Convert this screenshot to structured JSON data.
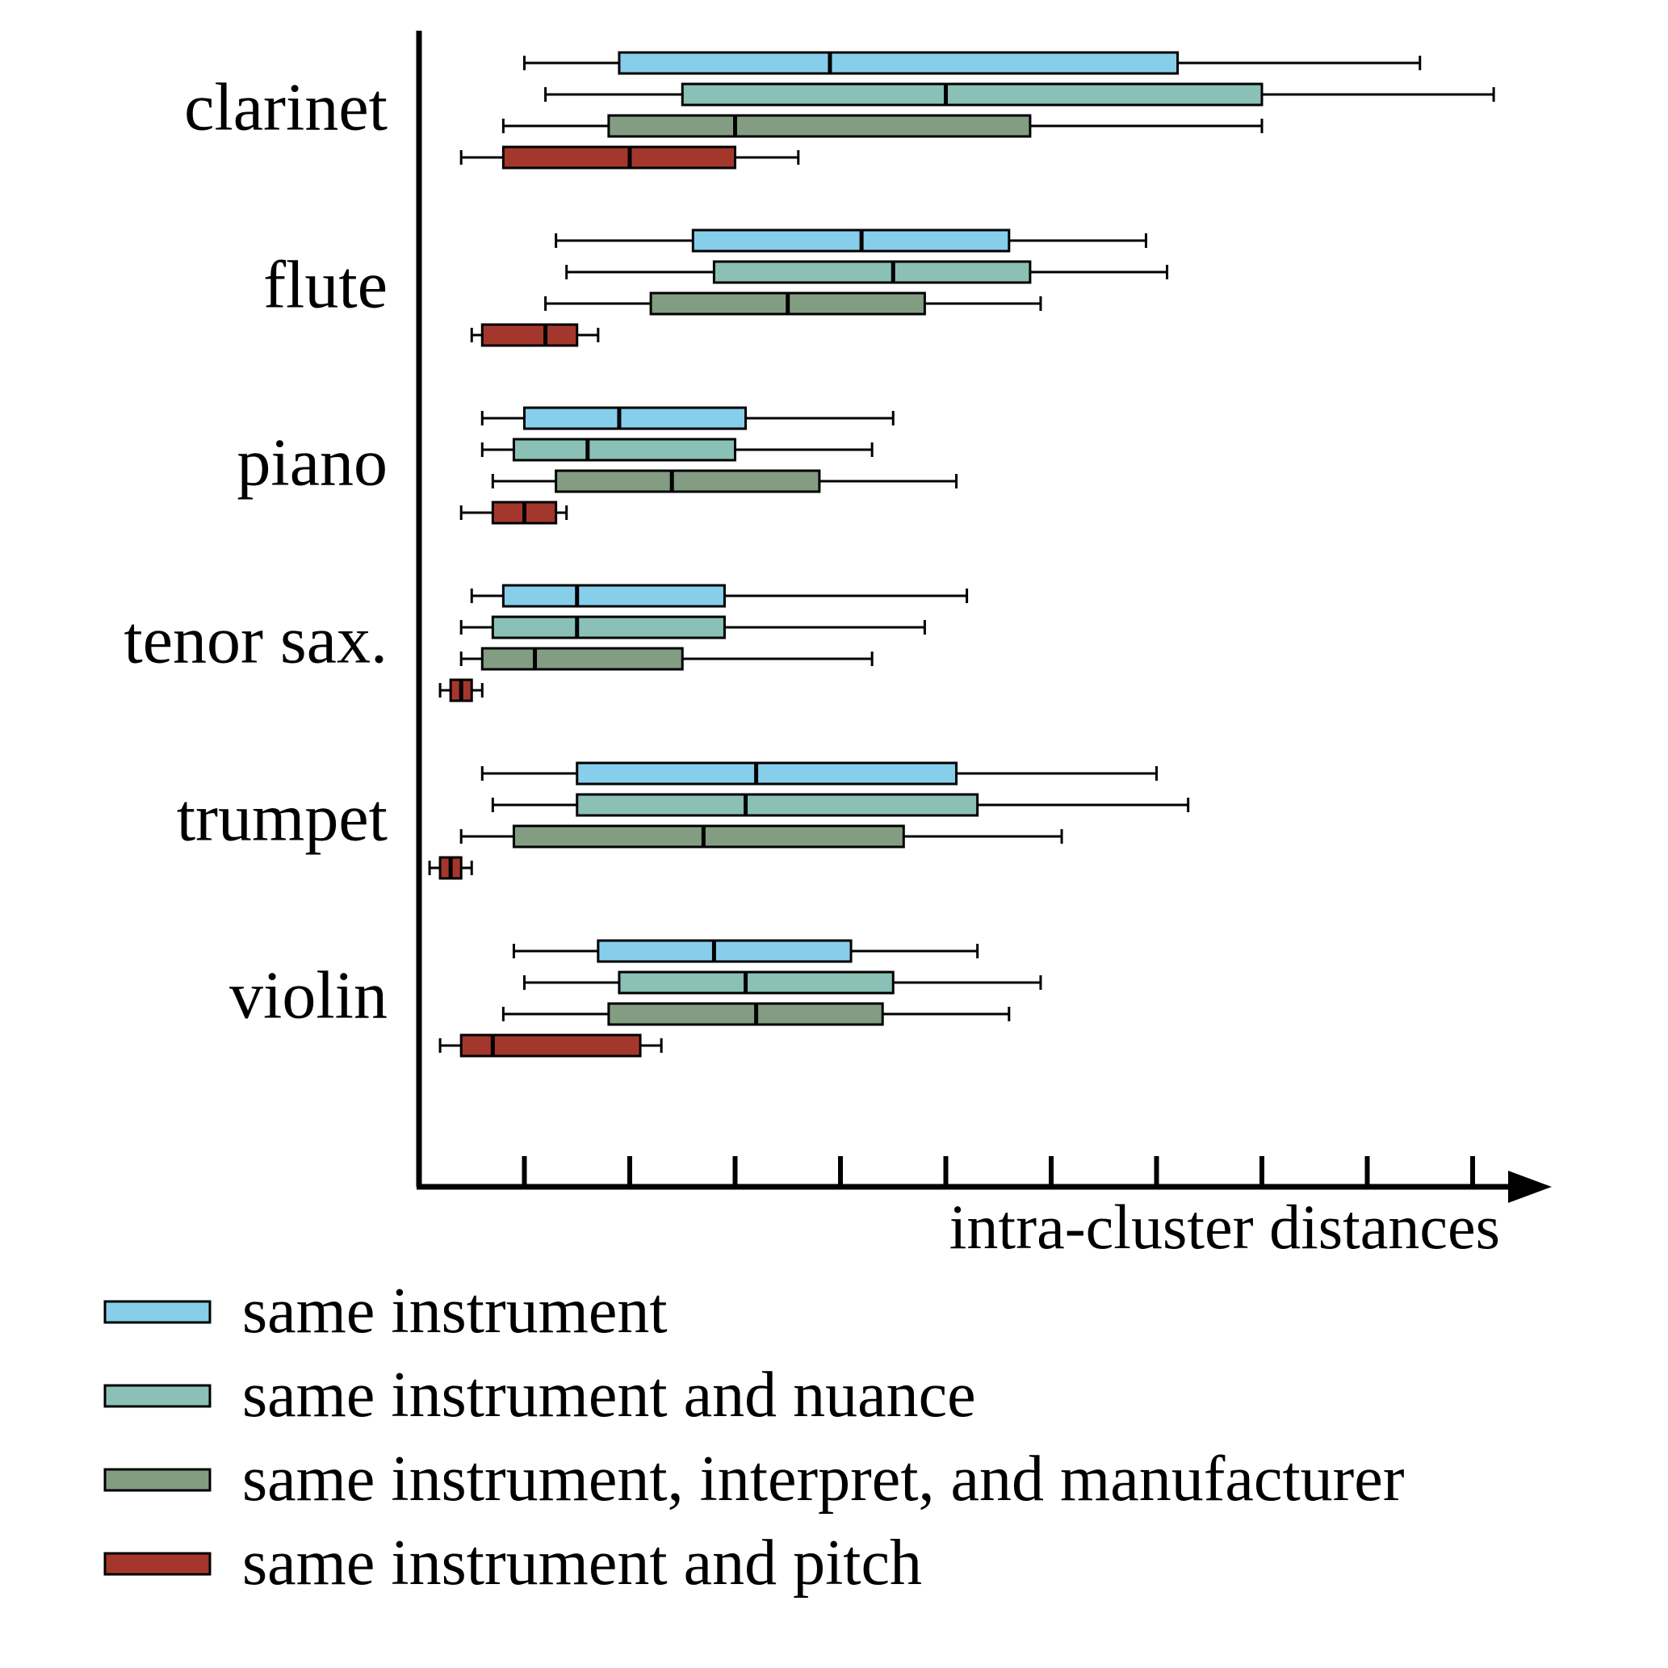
{
  "chart_data": {
    "type": "boxplot",
    "orientation": "horizontal",
    "xlabel": "intra-cluster distances",
    "ylabel": "",
    "x_ticks": [
      1,
      2,
      3,
      4,
      5,
      6,
      7,
      8,
      9,
      10
    ],
    "x_tick_labels_shown": false,
    "xlim": [
      0,
      10.6
    ],
    "grid": false,
    "legend_position": "bottom-left",
    "categories": [
      "clarinet",
      "flute",
      "piano",
      "tenor sax.",
      "trumpet",
      "violin"
    ],
    "series": [
      {
        "name": "same instrument",
        "color": "#87ceeb",
        "boxes": [
          {
            "whisker_low": 1.0,
            "q1": 1.9,
            "median": 3.9,
            "q3": 7.2,
            "whisker_high": 9.5
          },
          {
            "whisker_low": 1.3,
            "q1": 2.6,
            "median": 4.2,
            "q3": 5.6,
            "whisker_high": 6.9
          },
          {
            "whisker_low": 0.6,
            "q1": 1.0,
            "median": 1.9,
            "q3": 3.1,
            "whisker_high": 4.5
          },
          {
            "whisker_low": 0.5,
            "q1": 0.8,
            "median": 1.5,
            "q3": 2.9,
            "whisker_high": 5.2
          },
          {
            "whisker_low": 0.6,
            "q1": 1.5,
            "median": 3.2,
            "q3": 5.1,
            "whisker_high": 7.0
          },
          {
            "whisker_low": 0.9,
            "q1": 1.7,
            "median": 2.8,
            "q3": 4.1,
            "whisker_high": 5.3
          }
        ]
      },
      {
        "name": "same instrument and nuance",
        "color": "#8ac0b6",
        "boxes": [
          {
            "whisker_low": 1.2,
            "q1": 2.5,
            "median": 5.0,
            "q3": 8.0,
            "whisker_high": 10.2
          },
          {
            "whisker_low": 1.4,
            "q1": 2.8,
            "median": 4.5,
            "q3": 5.8,
            "whisker_high": 7.1
          },
          {
            "whisker_low": 0.6,
            "q1": 0.9,
            "median": 1.6,
            "q3": 3.0,
            "whisker_high": 4.3
          },
          {
            "whisker_low": 0.4,
            "q1": 0.7,
            "median": 1.5,
            "q3": 2.9,
            "whisker_high": 4.8
          },
          {
            "whisker_low": 0.7,
            "q1": 1.5,
            "median": 3.1,
            "q3": 5.3,
            "whisker_high": 7.3
          },
          {
            "whisker_low": 1.0,
            "q1": 1.9,
            "median": 3.1,
            "q3": 4.5,
            "whisker_high": 5.9
          }
        ]
      },
      {
        "name": "same instrument, interpret, and manufacturer",
        "color": "#839d82",
        "boxes": [
          {
            "whisker_low": 0.8,
            "q1": 1.8,
            "median": 3.0,
            "q3": 5.8,
            "whisker_high": 8.0
          },
          {
            "whisker_low": 1.2,
            "q1": 2.2,
            "median": 3.5,
            "q3": 4.8,
            "whisker_high": 5.9
          },
          {
            "whisker_low": 0.7,
            "q1": 1.3,
            "median": 2.4,
            "q3": 3.8,
            "whisker_high": 5.1
          },
          {
            "whisker_low": 0.4,
            "q1": 0.6,
            "median": 1.1,
            "q3": 2.5,
            "whisker_high": 4.3
          },
          {
            "whisker_low": 0.4,
            "q1": 0.9,
            "median": 2.7,
            "q3": 4.6,
            "whisker_high": 6.1
          },
          {
            "whisker_low": 0.8,
            "q1": 1.8,
            "median": 3.2,
            "q3": 4.4,
            "whisker_high": 5.6
          }
        ]
      },
      {
        "name": "same instrument and pitch",
        "color": "#a4372c",
        "boxes": [
          {
            "whisker_low": 0.4,
            "q1": 0.8,
            "median": 2.0,
            "q3": 3.0,
            "whisker_high": 3.6
          },
          {
            "whisker_low": 0.5,
            "q1": 0.6,
            "median": 1.2,
            "q3": 1.5,
            "whisker_high": 1.7
          },
          {
            "whisker_low": 0.4,
            "q1": 0.7,
            "median": 1.0,
            "q3": 1.3,
            "whisker_high": 1.4
          },
          {
            "whisker_low": 0.2,
            "q1": 0.3,
            "median": 0.4,
            "q3": 0.5,
            "whisker_high": 0.6
          },
          {
            "whisker_low": 0.1,
            "q1": 0.2,
            "median": 0.3,
            "q3": 0.4,
            "whisker_high": 0.5
          },
          {
            "whisker_low": 0.2,
            "q1": 0.4,
            "median": 0.7,
            "q3": 2.1,
            "whisker_high": 2.3
          }
        ]
      }
    ]
  }
}
